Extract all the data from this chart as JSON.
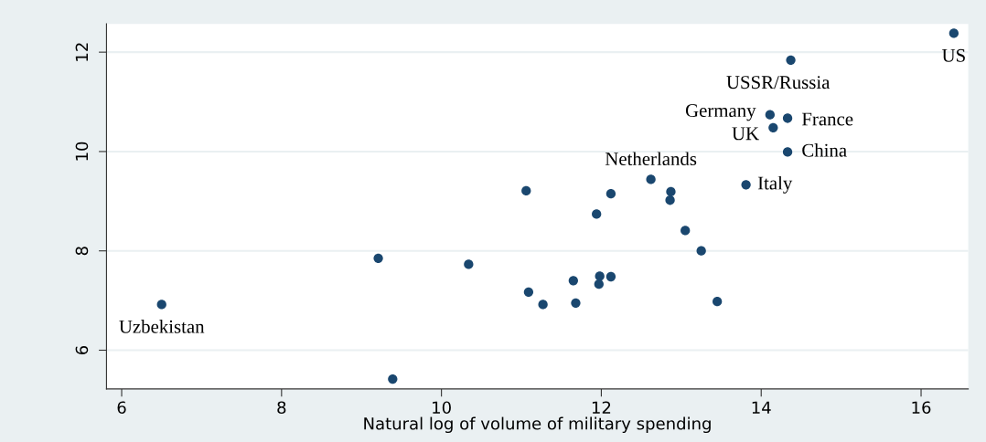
{
  "chart_data": {
    "type": "scatter",
    "xlabel": "Natural log of volume of military spending",
    "x": [
      6.5,
      9.21,
      9.39,
      10.34,
      11.06,
      11.09,
      11.27,
      11.68,
      11.65,
      11.98,
      11.97,
      12.12,
      11.94,
      12.12,
      12.62,
      12.87,
      12.86,
      13.05,
      13.25,
      13.45,
      13.81,
      14.33,
      14.15,
      14.11,
      14.33,
      14.37,
      16.41
    ],
    "values": [
      6.92,
      7.85,
      5.42,
      7.73,
      9.21,
      7.17,
      6.92,
      6.95,
      7.4,
      7.49,
      7.33,
      7.48,
      8.74,
      9.15,
      9.44,
      9.19,
      9.02,
      8.41,
      8.0,
      6.98,
      9.33,
      9.99,
      10.48,
      10.74,
      10.67,
      11.84,
      12.38
    ],
    "color": "#1a476f",
    "marker": "circle",
    "xlim": [
      5.81,
      16.59
    ],
    "ylim": [
      5.22,
      12.57
    ],
    "xticks": [
      6,
      8,
      10,
      12,
      14,
      16
    ],
    "yticks": [
      6,
      8,
      10,
      12
    ],
    "grid": "y",
    "annotations": [
      {
        "text": "Uzbekistan",
        "x": 6.5,
        "y": 6.92
      },
      {
        "text": "Netherlands",
        "x": 12.62,
        "y": 9.44
      },
      {
        "text": "Italy",
        "x": 13.81,
        "y": 9.33
      },
      {
        "text": "China",
        "x": 14.33,
        "y": 9.99
      },
      {
        "text": "UK",
        "x": 14.15,
        "y": 10.48
      },
      {
        "text": "Germany",
        "x": 14.11,
        "y": 10.74
      },
      {
        "text": "France",
        "x": 14.33,
        "y": 10.67
      },
      {
        "text": "USSR/Russia",
        "x": 14.37,
        "y": 11.84
      },
      {
        "text": "US",
        "x": 16.41,
        "y": 12.38
      }
    ]
  }
}
